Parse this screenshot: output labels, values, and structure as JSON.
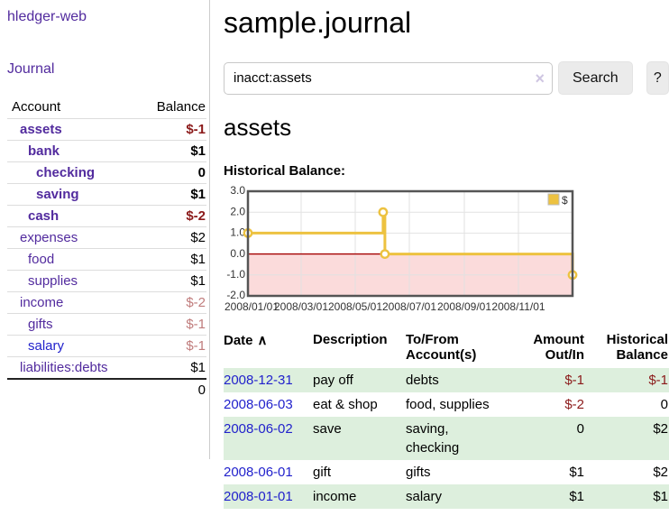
{
  "colors": {
    "link_purple": "#522b9e",
    "link_blue": "#2222cc",
    "negative_strong": "#8b1a1a",
    "negative_soft": "#c07c7c",
    "row_shade_green": "#ddefdd",
    "series_yellow": "#edc240",
    "negative_region_pink": "#fbdbdb",
    "zero_line_red": "#a40000"
  },
  "sidebar": {
    "brand": "hledger-web",
    "journal_link": "Journal",
    "accounts": {
      "headers": {
        "account": "Account",
        "balance": "Balance"
      },
      "rows": [
        {
          "name": "assets",
          "balance": "$-1"
        },
        {
          "name": "bank",
          "balance": "$1"
        },
        {
          "name": "checking",
          "balance": "0"
        },
        {
          "name": "saving",
          "balance": "$1"
        },
        {
          "name": "cash",
          "balance": "$-2"
        },
        {
          "name": "expenses",
          "balance": "$2"
        },
        {
          "name": "food",
          "balance": "$1"
        },
        {
          "name": "supplies",
          "balance": "$1"
        },
        {
          "name": "income",
          "balance": "$-2"
        },
        {
          "name": "gifts",
          "balance": "$-1"
        },
        {
          "name": "salary",
          "balance": "$-1"
        },
        {
          "name": "liabilities:debts",
          "balance": "$1"
        }
      ],
      "total": "0"
    }
  },
  "header": {
    "title": "sample.journal"
  },
  "search": {
    "value": "inacct:assets",
    "clear_icon": "×",
    "search_label": "Search",
    "help_label": "?"
  },
  "account_page": {
    "title": "assets",
    "chart_label": "Historical Balance:"
  },
  "chart_data": {
    "type": "line",
    "style": "step",
    "title": "Historical Balance",
    "legend_position": "top-right",
    "grid": true,
    "ylim": [
      -2,
      3
    ],
    "xrange": [
      "2008-01-01",
      "2008-12-31"
    ],
    "yticks": [
      "3.0",
      "2.0",
      "1.0",
      "0.0",
      "-1.0",
      "-2.0"
    ],
    "xticks": [
      "2008/01/01",
      "2008/03/01",
      "2008/05/01",
      "2008/07/01",
      "2008/09/01",
      "2008/11/01"
    ],
    "series": [
      {
        "name": "$",
        "color": "#edc240",
        "points": [
          [
            "2008-01-01",
            1
          ],
          [
            "2008-06-01",
            2
          ],
          [
            "2008-06-03",
            0
          ],
          [
            "2008-12-31",
            -1
          ]
        ]
      }
    ]
  },
  "register": {
    "sort_icon": "∧",
    "headers": {
      "date": "Date",
      "description": "Description",
      "accounts": "To/From Account(s)",
      "amount": "Amount Out/In",
      "balance": "Historical Balance"
    },
    "rows": [
      {
        "date": "2008-12-31",
        "description": "pay off",
        "accounts": "debts",
        "amount": "$-1",
        "balance": "$-1"
      },
      {
        "date": "2008-06-03",
        "description": "eat & shop",
        "accounts": "food, supplies",
        "amount": "$-2",
        "balance": "0"
      },
      {
        "date": "2008-06-02",
        "description": "save",
        "accounts": "saving, checking",
        "amount": "0",
        "balance": "$2"
      },
      {
        "date": "2008-06-01",
        "description": "gift",
        "accounts": "gifts",
        "amount": "$1",
        "balance": "$2"
      },
      {
        "date": "2008-01-01",
        "description": "income",
        "accounts": "salary",
        "amount": "$1",
        "balance": "$1"
      }
    ]
  }
}
